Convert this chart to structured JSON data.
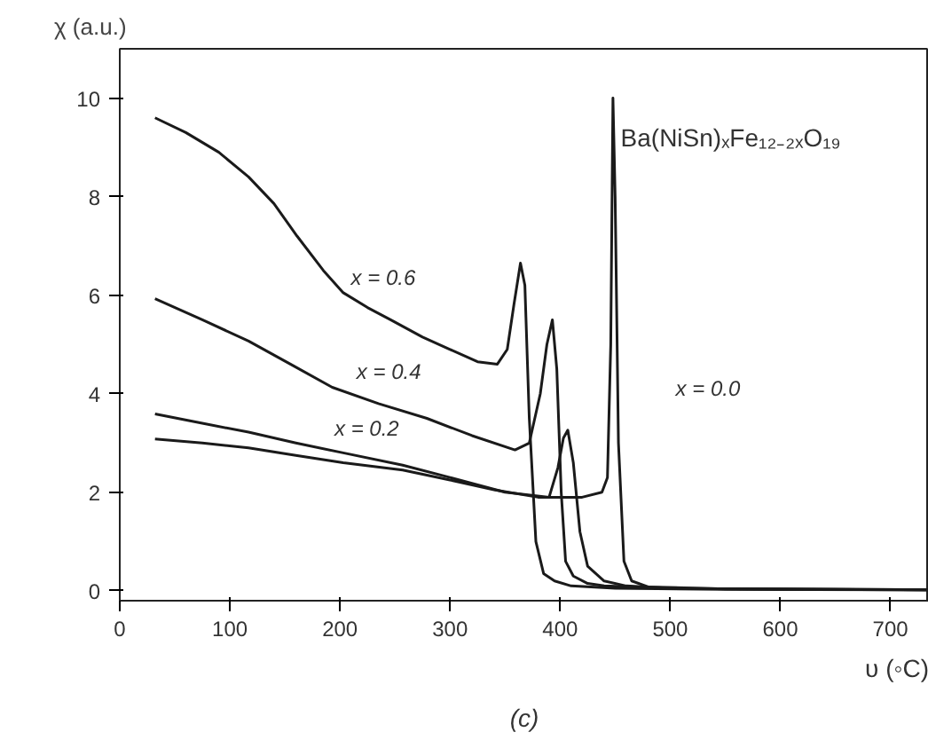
{
  "chart_data": {
    "type": "line",
    "xlabel": "υ (◦C)",
    "ylabel": "χ (a.u.)",
    "xlim": [
      0,
      735
    ],
    "ylim": [
      -0.2,
      11
    ],
    "xticks": [
      0,
      100,
      200,
      300,
      400,
      500,
      600,
      700
    ],
    "yticks": [
      0,
      2,
      4,
      6,
      8,
      10
    ],
    "grid": false,
    "marker": "none",
    "line_style": "solid",
    "series": [
      {
        "color": "#1a1a1a",
        "x": [
          32,
          60,
          90,
          117,
          140,
          161,
          185,
          203,
          225,
          246,
          275,
          300,
          325,
          343,
          352,
          358,
          364,
          368,
          372,
          378,
          385,
          395,
          410,
          450,
          550,
          735
        ],
        "values": [
          9.6,
          9.3,
          8.9,
          8.4,
          7.86,
          7.2,
          6.5,
          6.05,
          5.75,
          5.5,
          5.15,
          4.9,
          4.65,
          4.6,
          4.9,
          5.8,
          6.65,
          6.2,
          3.5,
          1.0,
          0.35,
          0.2,
          0.1,
          0.05,
          0.03,
          0.02
        ]
      },
      {
        "color": "#1a1a1a",
        "x": [
          32,
          75,
          117,
          155,
          193,
          235,
          279,
          320,
          359,
          372,
          382,
          388,
          393,
          397,
          401,
          405,
          412,
          425,
          440,
          500,
          735
        ],
        "values": [
          5.93,
          5.5,
          5.07,
          4.6,
          4.13,
          3.8,
          3.5,
          3.15,
          2.86,
          3.0,
          4.0,
          5.0,
          5.5,
          4.5,
          2.0,
          0.6,
          0.3,
          0.15,
          0.1,
          0.05,
          0.02
        ]
      },
      {
        "color": "#1a1a1a",
        "x": [
          32,
          75,
          117,
          160,
          203,
          257,
          300,
          350,
          390,
          398,
          403,
          407,
          412,
          418,
          425,
          440,
          460,
          500,
          735
        ],
        "values": [
          3.59,
          3.4,
          3.22,
          3.0,
          2.8,
          2.55,
          2.3,
          2.0,
          1.9,
          2.5,
          3.1,
          3.26,
          2.6,
          1.2,
          0.5,
          0.2,
          0.1,
          0.05,
          0.02
        ]
      },
      {
        "color": "#1a1a1a",
        "x": [
          32,
          75,
          117,
          160,
          203,
          257,
          300,
          340,
          380,
          420,
          438,
          443,
          446,
          448,
          450,
          453,
          458,
          465,
          480,
          550,
          735
        ],
        "values": [
          3.08,
          3.0,
          2.9,
          2.75,
          2.6,
          2.45,
          2.25,
          2.05,
          1.9,
          1.9,
          2.0,
          2.3,
          5.0,
          10.0,
          8.0,
          3.0,
          0.6,
          0.2,
          0.08,
          0.04,
          0.02
        ]
      }
    ],
    "annotations": [
      "x = 0.6",
      "x = 0.4",
      "x = 0.2",
      "x = 0.0",
      "Ba(NiSn)ₓFe₁₂₋₂ₓO₁₉",
      "(c)"
    ]
  }
}
